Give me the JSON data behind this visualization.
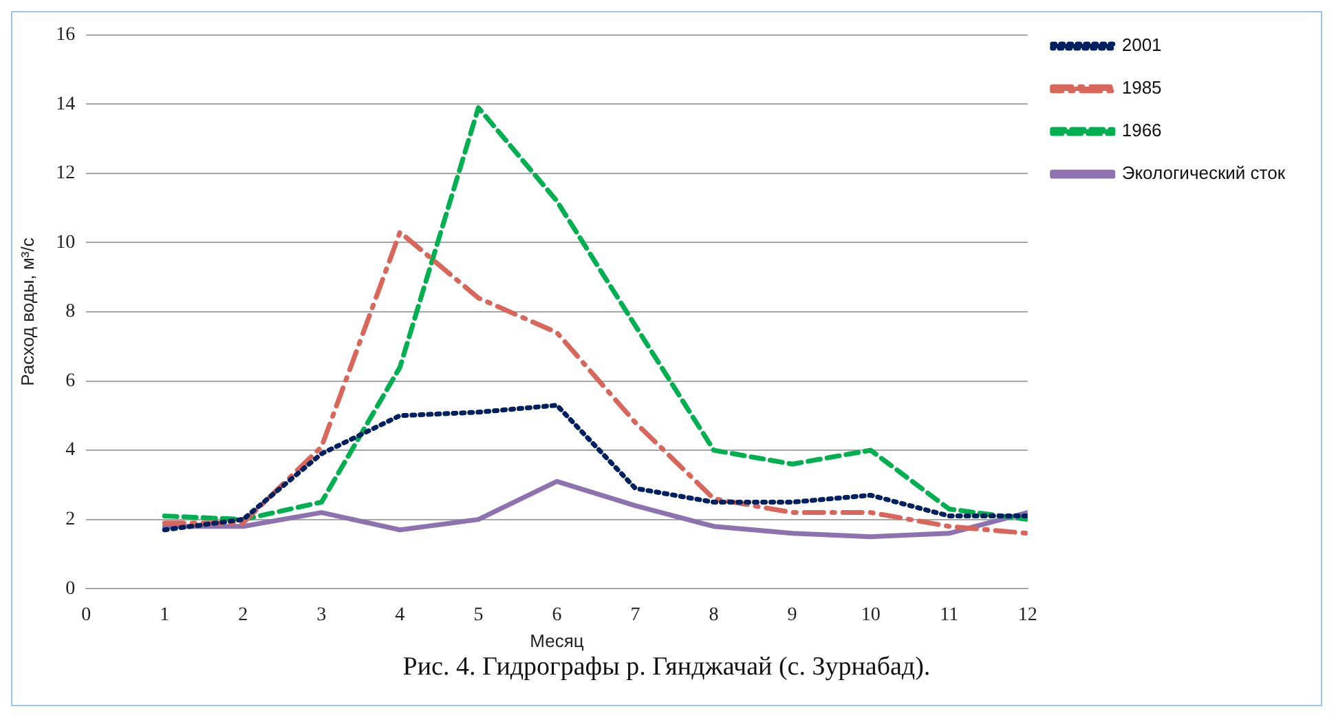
{
  "chart_data": {
    "type": "line",
    "title": "Рис. 4. Гидрографы р. Гянджачай (с. Зурнабад).",
    "xlabel": "Месяц",
    "ylabel": "Расход воды, м³/с",
    "x": [
      1,
      2,
      3,
      4,
      5,
      6,
      7,
      8,
      9,
      10,
      11,
      12
    ],
    "series": [
      {
        "name": "2001",
        "color": "#002060",
        "line_style": "dotted",
        "values": [
          1.7,
          2.0,
          3.9,
          5.0,
          5.1,
          5.3,
          2.9,
          2.5,
          2.5,
          2.7,
          2.1,
          2.1
        ]
      },
      {
        "name": "1985",
        "color": "#d9665b",
        "line_style": "dashdot",
        "values": [
          1.9,
          1.9,
          4.1,
          10.3,
          8.4,
          7.4,
          4.8,
          2.6,
          2.2,
          2.2,
          1.8,
          1.6
        ]
      },
      {
        "name": "1966",
        "color": "#00b050",
        "line_style": "dashed",
        "values": [
          2.1,
          2.0,
          2.5,
          6.4,
          13.9,
          11.2,
          7.6,
          4.0,
          3.6,
          4.0,
          2.3,
          2.0
        ]
      },
      {
        "name": "Экологический сток",
        "color": "#8e72b0",
        "line_style": "solid",
        "values": [
          1.8,
          1.8,
          2.2,
          1.7,
          2.0,
          3.1,
          2.4,
          1.8,
          1.6,
          1.5,
          1.6,
          2.2
        ]
      }
    ],
    "xlim": [
      0,
      12
    ],
    "xticks": [
      0,
      1,
      2,
      3,
      4,
      5,
      6,
      7,
      8,
      9,
      10,
      11,
      12
    ],
    "ylim": [
      0,
      16
    ],
    "yticks": [
      0,
      2,
      4,
      6,
      8,
      10,
      12,
      14,
      16
    ],
    "grid": "y",
    "legend": "top right",
    "marker": "none"
  }
}
